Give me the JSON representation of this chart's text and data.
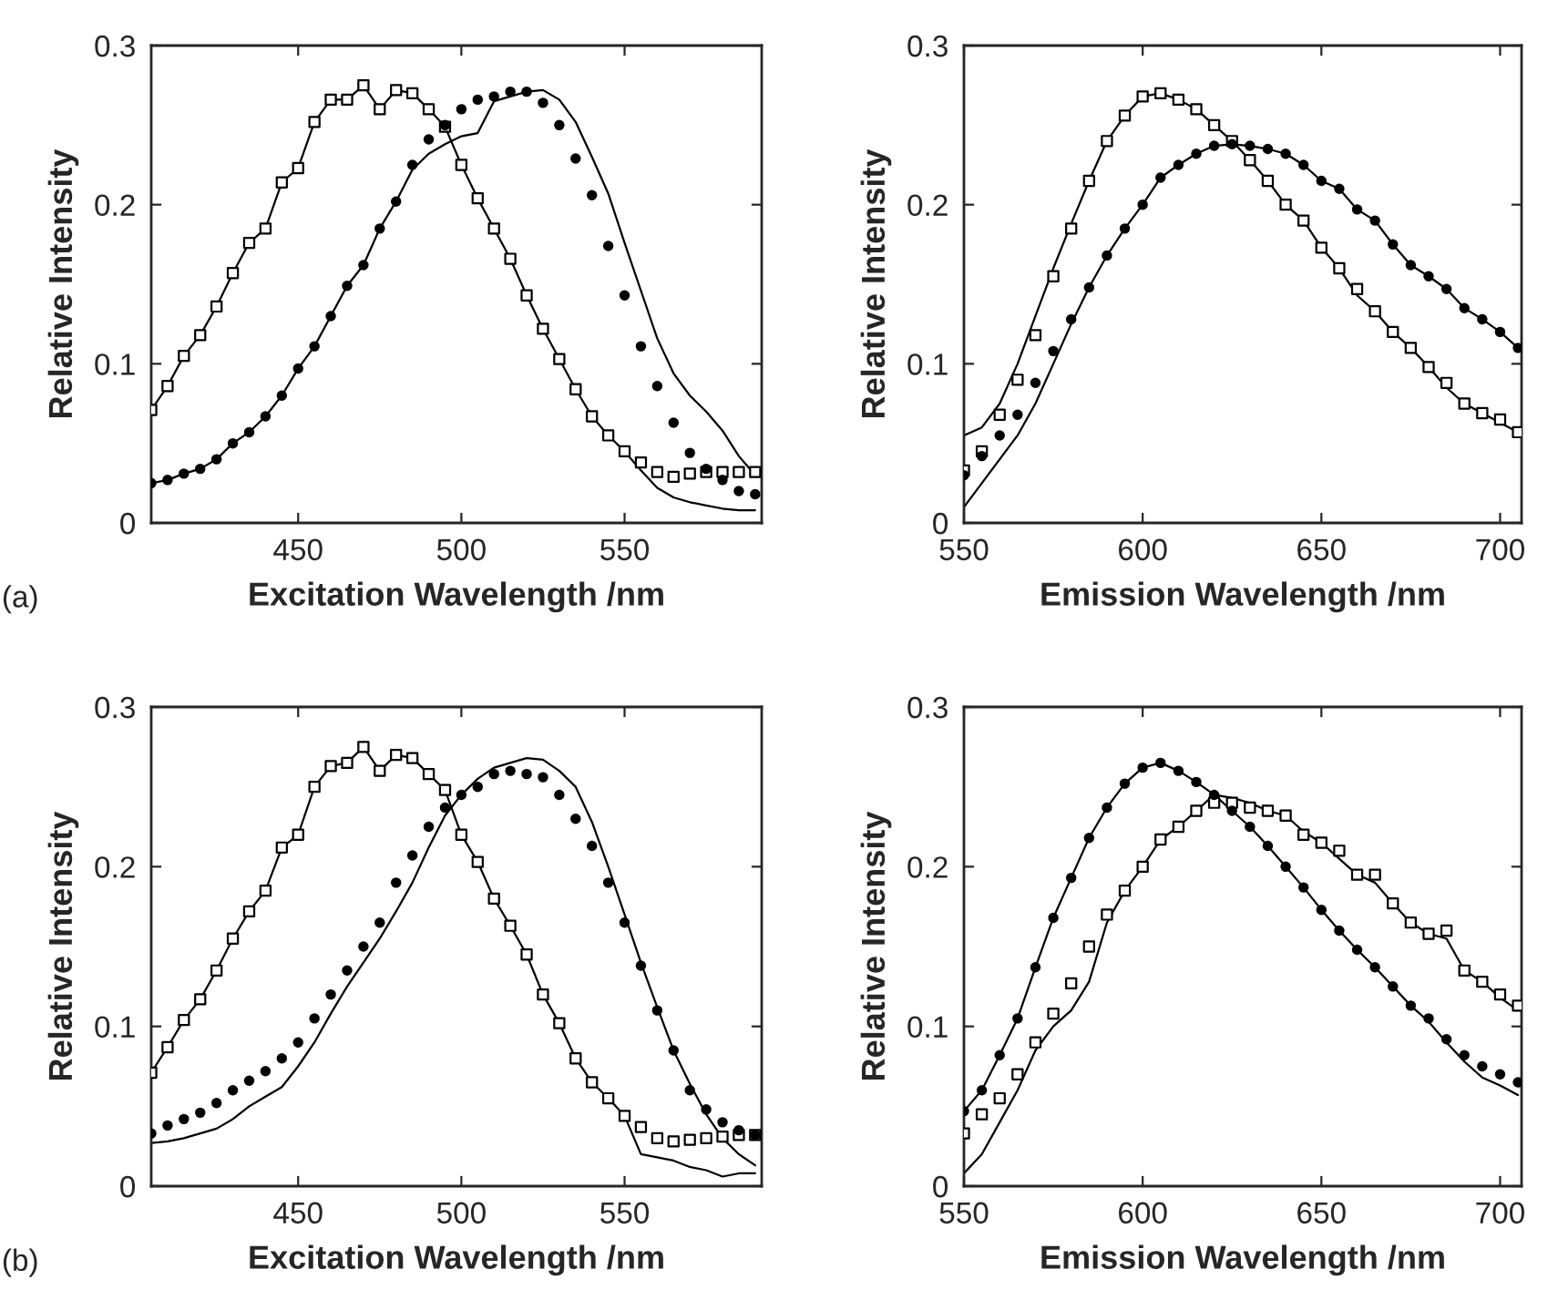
{
  "chart_data": [
    {
      "type": "scatter",
      "xlabel": "Excitation Wavelength /nm",
      "ylabel": "Relative Intensity",
      "annotations": [
        "(a)"
      ],
      "xlim": [
        405,
        592
      ],
      "xticks": [
        450,
        500,
        550
      ],
      "ylim": [
        0,
        0.3
      ],
      "yticks": [
        0,
        0.1,
        0.2,
        0.3
      ],
      "grid": false,
      "x": [
        405,
        410,
        415,
        420,
        425,
        430,
        435,
        440,
        445,
        450,
        455,
        460,
        465,
        470,
        475,
        480,
        485,
        490,
        495,
        500,
        505,
        510,
        515,
        520,
        525,
        530,
        535,
        540,
        545,
        550,
        555,
        560,
        565,
        570,
        575,
        580,
        585,
        590
      ],
      "series": [
        {
          "type": "line",
          "marker": "none",
          "color": "#000000",
          "values": [
            0.071,
            0.086,
            0.105,
            0.118,
            0.136,
            0.157,
            0.176,
            0.185,
            0.214,
            0.223,
            0.252,
            0.266,
            0.266,
            0.275,
            0.26,
            0.272,
            0.27,
            0.26,
            0.249,
            0.225,
            0.204,
            0.185,
            0.166,
            0.143,
            0.122,
            0.103,
            0.084,
            0.067,
            0.055,
            0.045,
            0.033,
            0.022,
            0.016,
            0.013,
            0.011,
            0.009,
            0.008,
            0.008
          ]
        },
        {
          "type": "line",
          "marker": "none",
          "color": "#000000",
          "values": [
            0.025,
            0.027,
            0.031,
            0.034,
            0.04,
            0.05,
            0.057,
            0.067,
            0.08,
            0.097,
            0.111,
            0.13,
            0.149,
            0.162,
            0.185,
            0.202,
            0.222,
            0.232,
            0.238,
            0.243,
            0.245,
            0.265,
            0.268,
            0.271,
            0.272,
            0.266,
            0.252,
            0.23,
            0.207,
            0.176,
            0.146,
            0.116,
            0.094,
            0.08,
            0.07,
            0.058,
            0.042,
            0.03
          ]
        },
        {
          "type": "scatter",
          "marker": "square",
          "color": "#000000",
          "values": [
            0.071,
            0.086,
            0.105,
            0.118,
            0.136,
            0.157,
            0.176,
            0.185,
            0.214,
            0.223,
            0.252,
            0.266,
            0.266,
            0.275,
            0.26,
            0.272,
            0.27,
            0.26,
            0.249,
            0.225,
            0.204,
            0.185,
            0.166,
            0.143,
            0.122,
            0.103,
            0.084,
            0.067,
            0.055,
            0.045,
            0.038,
            0.032,
            0.029,
            0.031,
            0.032,
            0.032,
            0.032,
            0.032
          ]
        },
        {
          "type": "scatter",
          "marker": "circle",
          "color": "#000000",
          "values": [
            0.025,
            0.027,
            0.031,
            0.034,
            0.04,
            0.05,
            0.057,
            0.067,
            0.08,
            0.097,
            0.111,
            0.13,
            0.149,
            0.162,
            0.185,
            0.202,
            0.225,
            0.241,
            0.25,
            0.26,
            0.266,
            0.268,
            0.271,
            0.271,
            0.264,
            0.25,
            0.229,
            0.206,
            0.174,
            0.143,
            0.111,
            0.086,
            0.063,
            0.044,
            0.034,
            0.027,
            0.02,
            0.018
          ]
        }
      ]
    },
    {
      "type": "scatter",
      "xlabel": "Emission Wavelength /nm",
      "ylabel": "Relative Intensity",
      "xlim": [
        550,
        706
      ],
      "xticks": [
        550,
        600,
        650,
        700
      ],
      "ylim": [
        0,
        0.3
      ],
      "yticks": [
        0,
        0.1,
        0.2,
        0.3
      ],
      "grid": false,
      "x": [
        550,
        555,
        560,
        565,
        570,
        575,
        580,
        585,
        590,
        595,
        600,
        605,
        610,
        615,
        620,
        625,
        630,
        635,
        640,
        645,
        650,
        655,
        660,
        665,
        670,
        675,
        680,
        685,
        690,
        695,
        700,
        705
      ],
      "series": [
        {
          "type": "line",
          "marker": "none",
          "color": "#000000",
          "values": [
            0.055,
            0.06,
            0.075,
            0.1,
            0.13,
            0.16,
            0.188,
            0.215,
            0.24,
            0.256,
            0.268,
            0.27,
            0.266,
            0.26,
            0.25,
            0.24,
            0.228,
            0.215,
            0.2,
            0.19,
            0.173,
            0.16,
            0.143,
            0.133,
            0.12,
            0.11,
            0.098,
            0.085,
            0.075,
            0.069,
            0.063,
            0.057
          ]
        },
        {
          "type": "line",
          "marker": "none",
          "color": "#000000",
          "values": [
            0.01,
            0.025,
            0.04,
            0.055,
            0.075,
            0.1,
            0.125,
            0.148,
            0.168,
            0.185,
            0.2,
            0.217,
            0.225,
            0.232,
            0.237,
            0.238,
            0.237,
            0.235,
            0.232,
            0.225,
            0.215,
            0.21,
            0.197,
            0.19,
            0.175,
            0.162,
            0.155,
            0.147,
            0.135,
            0.128,
            0.12,
            0.11
          ]
        },
        {
          "type": "scatter",
          "marker": "square",
          "color": "#000000",
          "values": [
            0.033,
            0.045,
            0.068,
            0.09,
            0.118,
            0.155,
            0.185,
            0.215,
            0.24,
            0.256,
            0.268,
            0.27,
            0.266,
            0.26,
            0.25,
            0.24,
            0.228,
            0.215,
            0.2,
            0.19,
            0.173,
            0.16,
            0.147,
            0.133,
            0.12,
            0.11,
            0.098,
            0.088,
            0.075,
            0.069,
            0.065,
            0.057
          ]
        },
        {
          "type": "scatter",
          "marker": "circle",
          "color": "#000000",
          "values": [
            0.03,
            0.042,
            0.055,
            0.068,
            0.088,
            0.108,
            0.128,
            0.148,
            0.168,
            0.185,
            0.2,
            0.217,
            0.225,
            0.232,
            0.237,
            0.238,
            0.237,
            0.235,
            0.232,
            0.225,
            0.215,
            0.21,
            0.197,
            0.19,
            0.175,
            0.162,
            0.155,
            0.147,
            0.135,
            0.128,
            0.12,
            0.11
          ]
        }
      ]
    },
    {
      "type": "scatter",
      "xlabel": "Excitation Wavelength /nm",
      "ylabel": "Relative Intensity",
      "annotations": [
        "(b)"
      ],
      "xlim": [
        405,
        592
      ],
      "xticks": [
        450,
        500,
        550
      ],
      "ylim": [
        0,
        0.3
      ],
      "yticks": [
        0,
        0.1,
        0.2,
        0.3
      ],
      "grid": false,
      "x": [
        405,
        410,
        415,
        420,
        425,
        430,
        435,
        440,
        445,
        450,
        455,
        460,
        465,
        470,
        475,
        480,
        485,
        490,
        495,
        500,
        505,
        510,
        515,
        520,
        525,
        530,
        535,
        540,
        545,
        550,
        555,
        560,
        565,
        570,
        575,
        580,
        585,
        590
      ],
      "series": [
        {
          "type": "line",
          "marker": "none",
          "color": "#000000",
          "values": [
            0.071,
            0.087,
            0.104,
            0.117,
            0.135,
            0.155,
            0.172,
            0.185,
            0.212,
            0.22,
            0.25,
            0.263,
            0.265,
            0.275,
            0.26,
            0.27,
            0.268,
            0.258,
            0.248,
            0.22,
            0.203,
            0.18,
            0.163,
            0.145,
            0.12,
            0.102,
            0.08,
            0.065,
            0.055,
            0.044,
            0.02,
            0.018,
            0.016,
            0.012,
            0.01,
            0.006,
            0.008,
            0.008
          ]
        },
        {
          "type": "line",
          "marker": "none",
          "color": "#000000",
          "values": [
            0.027,
            0.028,
            0.03,
            0.033,
            0.036,
            0.042,
            0.05,
            0.056,
            0.062,
            0.075,
            0.09,
            0.108,
            0.125,
            0.14,
            0.155,
            0.172,
            0.19,
            0.212,
            0.232,
            0.245,
            0.255,
            0.262,
            0.265,
            0.268,
            0.267,
            0.26,
            0.25,
            0.228,
            0.2,
            0.17,
            0.14,
            0.112,
            0.085,
            0.064,
            0.045,
            0.03,
            0.02,
            0.013
          ]
        },
        {
          "type": "scatter",
          "marker": "square",
          "color": "#000000",
          "values": [
            0.071,
            0.087,
            0.104,
            0.117,
            0.135,
            0.155,
            0.172,
            0.185,
            0.212,
            0.22,
            0.25,
            0.263,
            0.265,
            0.275,
            0.26,
            0.27,
            0.268,
            0.258,
            0.248,
            0.22,
            0.203,
            0.18,
            0.163,
            0.145,
            0.12,
            0.102,
            0.08,
            0.065,
            0.055,
            0.044,
            0.037,
            0.03,
            0.028,
            0.029,
            0.03,
            0.031,
            0.032,
            0.032
          ]
        },
        {
          "type": "scatter",
          "marker": "circle",
          "color": "#000000",
          "values": [
            0.033,
            0.038,
            0.042,
            0.046,
            0.052,
            0.06,
            0.066,
            0.072,
            0.08,
            0.09,
            0.105,
            0.12,
            0.135,
            0.15,
            0.165,
            0.19,
            0.207,
            0.225,
            0.237,
            0.245,
            0.25,
            0.258,
            0.26,
            0.258,
            0.256,
            0.245,
            0.23,
            0.213,
            0.19,
            0.165,
            0.138,
            0.11,
            0.085,
            0.06,
            0.048,
            0.04,
            0.035,
            0.032
          ]
        }
      ]
    },
    {
      "type": "scatter",
      "xlabel": "Emission Wavelength /nm",
      "ylabel": "Relative Intensity",
      "xlim": [
        550,
        706
      ],
      "xticks": [
        550,
        600,
        650,
        700
      ],
      "ylim": [
        0,
        0.3
      ],
      "yticks": [
        0,
        0.1,
        0.2,
        0.3
      ],
      "grid": false,
      "x": [
        550,
        555,
        560,
        565,
        570,
        575,
        580,
        585,
        590,
        595,
        600,
        605,
        610,
        615,
        620,
        625,
        630,
        635,
        640,
        645,
        650,
        655,
        660,
        665,
        670,
        675,
        680,
        685,
        690,
        695,
        700,
        705
      ],
      "series": [
        {
          "type": "line",
          "marker": "none",
          "color": "#000000",
          "values": [
            0.047,
            0.06,
            0.082,
            0.105,
            0.137,
            0.168,
            0.193,
            0.218,
            0.237,
            0.252,
            0.262,
            0.265,
            0.26,
            0.253,
            0.245,
            0.235,
            0.225,
            0.213,
            0.2,
            0.187,
            0.173,
            0.16,
            0.148,
            0.137,
            0.125,
            0.113,
            0.103,
            0.09,
            0.078,
            0.068,
            0.063,
            0.057
          ]
        },
        {
          "type": "line",
          "marker": "none",
          "color": "#000000",
          "values": [
            0.008,
            0.02,
            0.04,
            0.06,
            0.085,
            0.1,
            0.11,
            0.128,
            0.165,
            0.185,
            0.2,
            0.217,
            0.225,
            0.235,
            0.245,
            0.243,
            0.24,
            0.235,
            0.232,
            0.222,
            0.215,
            0.205,
            0.195,
            0.19,
            0.177,
            0.165,
            0.158,
            0.155,
            0.135,
            0.128,
            0.118,
            0.11
          ]
        },
        {
          "type": "scatter",
          "marker": "square",
          "color": "#000000",
          "values": [
            0.033,
            0.045,
            0.055,
            0.07,
            0.09,
            0.108,
            0.127,
            0.15,
            0.17,
            0.185,
            0.2,
            0.217,
            0.225,
            0.235,
            0.24,
            0.24,
            0.237,
            0.235,
            0.232,
            0.22,
            0.215,
            0.21,
            0.195,
            0.195,
            0.177,
            0.165,
            0.158,
            0.16,
            0.135,
            0.128,
            0.12,
            0.113
          ]
        },
        {
          "type": "scatter",
          "marker": "circle",
          "color": "#000000",
          "values": [
            0.047,
            0.06,
            0.082,
            0.105,
            0.137,
            0.168,
            0.193,
            0.218,
            0.237,
            0.252,
            0.262,
            0.265,
            0.26,
            0.253,
            0.245,
            0.235,
            0.225,
            0.213,
            0.2,
            0.187,
            0.173,
            0.16,
            0.148,
            0.137,
            0.125,
            0.113,
            0.105,
            0.092,
            0.082,
            0.075,
            0.07,
            0.065
          ]
        }
      ]
    }
  ]
}
